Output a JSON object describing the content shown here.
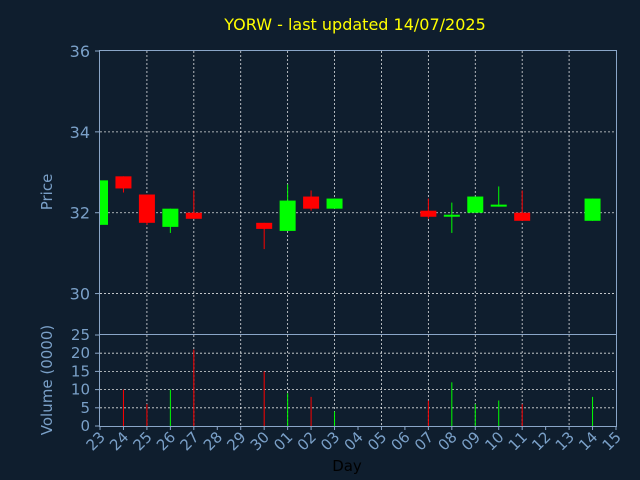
{
  "chart_data": {
    "type": "candlestick",
    "title": "YORW - last updated 14/07/2025",
    "xlabel": "Day",
    "x_tick_labels": [
      "23",
      "24",
      "25",
      "26",
      "27",
      "28",
      "29",
      "30",
      "01",
      "02",
      "03",
      "04",
      "05",
      "06",
      "07",
      "08",
      "09",
      "10",
      "11",
      "12",
      "13",
      "14",
      "15"
    ],
    "price_panel": {
      "ylabel": "Price",
      "ylim": [
        29,
        36
      ],
      "yticks": [
        30,
        32,
        34,
        36
      ],
      "grid": true
    },
    "volume_panel": {
      "ylabel": "Volume (0000)",
      "ylim": [
        0,
        25
      ],
      "yticks": [
        0,
        5,
        10,
        15,
        20,
        25
      ],
      "grid": true
    },
    "up_color": "#00ff00",
    "down_color": "#ff0000",
    "candles": [
      {
        "day": "23",
        "open": 31.7,
        "high": 32.8,
        "low": 31.7,
        "close": 32.8,
        "volume": 0
      },
      {
        "day": "24",
        "open": 32.9,
        "high": 32.9,
        "low": 32.5,
        "close": 32.6,
        "volume": 10
      },
      {
        "day": "25",
        "open": 32.45,
        "high": 32.45,
        "low": 31.7,
        "close": 31.75,
        "volume": 6
      },
      {
        "day": "26",
        "open": 31.65,
        "high": 32.1,
        "low": 31.5,
        "close": 32.1,
        "volume": 10
      },
      {
        "day": "27",
        "open": 32.0,
        "high": 32.55,
        "low": 31.85,
        "close": 31.85,
        "volume": 21
      },
      {
        "day": "30",
        "open": 31.75,
        "high": 31.75,
        "low": 31.1,
        "close": 31.6,
        "volume": 15
      },
      {
        "day": "01",
        "open": 31.55,
        "high": 32.7,
        "low": 31.55,
        "close": 32.3,
        "volume": 9
      },
      {
        "day": "02",
        "open": 32.4,
        "high": 32.55,
        "low": 32.05,
        "close": 32.1,
        "volume": 8
      },
      {
        "day": "03",
        "open": 32.1,
        "high": 32.35,
        "low": 32.1,
        "close": 32.35,
        "volume": 4
      },
      {
        "day": "07",
        "open": 32.05,
        "high": 32.35,
        "low": 31.85,
        "close": 31.9,
        "volume": 7
      },
      {
        "day": "08",
        "open": 31.95,
        "high": 32.25,
        "low": 31.5,
        "close": 31.95,
        "volume": 12
      },
      {
        "day": "09",
        "open": 32.0,
        "high": 32.4,
        "low": 32.0,
        "close": 32.4,
        "volume": 6
      },
      {
        "day": "10",
        "open": 32.2,
        "high": 32.65,
        "low": 32.15,
        "close": 32.2,
        "volume": 7
      },
      {
        "day": "11",
        "open": 32.0,
        "high": 32.55,
        "low": 31.8,
        "close": 31.8,
        "volume": 6
      },
      {
        "day": "14",
        "open": 31.8,
        "high": 32.35,
        "low": 31.8,
        "close": 32.35,
        "volume": 8
      }
    ]
  }
}
